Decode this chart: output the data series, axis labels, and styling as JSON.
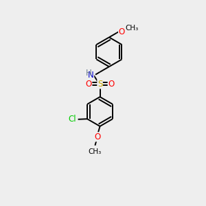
{
  "bg_color": "#eeeeee",
  "bond_color": "#000000",
  "atom_colors": {
    "O": "#ff0000",
    "N": "#0000cc",
    "S": "#ccaa00",
    "Cl": "#00cc00",
    "C": "#000000",
    "H": "#708090"
  },
  "line_width": 1.4,
  "font_size": 8.5,
  "ring_r": 0.72,
  "dbo": 0.065
}
